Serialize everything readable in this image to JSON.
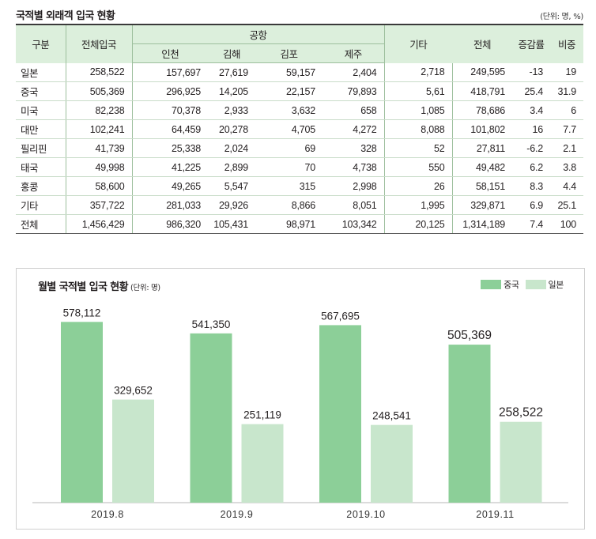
{
  "table": {
    "title": "국적별 외래객 입국 현황",
    "unit": "(단위: 명, %)",
    "headers": {
      "category": "구분",
      "total_entry": "전체입국",
      "airport_group": "공항",
      "airports": [
        "인천",
        "김해",
        "김포",
        "제주"
      ],
      "other": "기타",
      "total": "전체",
      "change_rate": "증감률",
      "share": "비중"
    },
    "rows": [
      {
        "label": "일본",
        "cells": [
          "258,522",
          "157,697",
          "27,619",
          "59,157",
          "2,404",
          "2,718",
          "249,595",
          "-13",
          "19"
        ]
      },
      {
        "label": "중국",
        "cells": [
          "505,369",
          "296,925",
          "14,205",
          "22,157",
          "79,893",
          "5,61",
          "418,791",
          "25.4",
          "31.9"
        ]
      },
      {
        "label": "미국",
        "cells": [
          "82,238",
          "70,378",
          "2,933",
          "3,632",
          "658",
          "1,085",
          "78,686",
          "3.4",
          "6"
        ]
      },
      {
        "label": "대만",
        "cells": [
          "102,241",
          "64,459",
          "20,278",
          "4,705",
          "4,272",
          "8,088",
          "101,802",
          "16",
          "7.7"
        ]
      },
      {
        "label": "필리핀",
        "cells": [
          "41,739",
          "25,338",
          "2,024",
          "69",
          "328",
          "52",
          "27,811",
          "-6.2",
          "2.1"
        ]
      },
      {
        "label": "태국",
        "cells": [
          "49,998",
          "41,225",
          "2,899",
          "70",
          "4,738",
          "550",
          "49,482",
          "6.2",
          "3.8"
        ]
      },
      {
        "label": "홍콩",
        "cells": [
          "58,600",
          "49,265",
          "5,547",
          "315",
          "2,998",
          "26",
          "58,151",
          "8.3",
          "4.4"
        ]
      },
      {
        "label": "기타",
        "cells": [
          "357,722",
          "281,033",
          "29,926",
          "8,866",
          "8,051",
          "1,995",
          "329,871",
          "6.9",
          "25.1"
        ]
      },
      {
        "label": "전체",
        "cells": [
          "1,456,429",
          "986,320",
          "105,431",
          "98,971",
          "103,342",
          "20,125",
          "1,314,189",
          "7.4",
          "100"
        ]
      }
    ]
  },
  "chart_title": "월별 국적별 입국 현황",
  "chart_unit": "(단위: 명)",
  "colors": {
    "china": "#8ccf98",
    "japan": "#c8e6cc",
    "header_bg": "#dcefdc"
  },
  "chart_data": {
    "type": "bar",
    "title": "월별 국적별 입국 현황",
    "unit": "(단위: 명)",
    "categories": [
      "2019.8",
      "2019.9",
      "2019.10",
      "2019.11"
    ],
    "series": [
      {
        "name": "중국",
        "values": [
          578112,
          541350,
          567695,
          505369
        ],
        "labels": [
          "578,112",
          "541,350",
          "567,695",
          "505,369"
        ],
        "color": "#8ccf98"
      },
      {
        "name": "일본",
        "values": [
          329652,
          251119,
          248541,
          258522
        ],
        "labels": [
          "329,652",
          "251,119",
          "248,541",
          "258,522"
        ],
        "color": "#c8e6cc"
      }
    ],
    "legend_position": "top-right",
    "grid": false,
    "ylim": [
      0,
      680000
    ]
  }
}
